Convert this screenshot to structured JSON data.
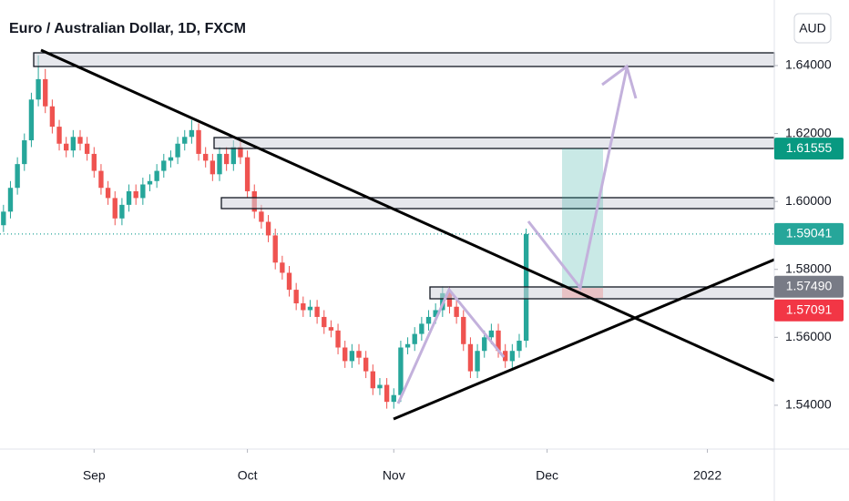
{
  "chart_data": {
    "type": "candlestick",
    "title": "Euro / Australian Dollar, 1D, FXCM",
    "currency": "AUD",
    "x": [
      -13,
      -12,
      -11,
      -10,
      -9,
      -8,
      -7,
      -6,
      -5,
      -4,
      -3,
      -2,
      -1,
      0,
      1,
      2,
      3,
      4,
      5,
      6,
      7,
      8,
      9,
      10,
      11,
      12,
      13,
      14,
      15,
      16,
      17,
      18,
      19,
      20,
      21,
      22,
      23,
      24,
      25,
      26,
      27,
      28,
      29,
      30,
      31,
      32,
      33,
      34,
      35,
      36,
      37,
      38,
      39,
      40,
      41,
      42,
      43,
      44,
      45,
      46,
      47,
      48,
      49,
      50,
      51,
      52,
      53,
      54,
      55,
      56,
      57,
      58,
      59,
      60,
      61,
      62
    ],
    "candles": [
      [
        1.593,
        1.599,
        1.591,
        1.597
      ],
      [
        1.597,
        1.606,
        1.595,
        1.604
      ],
      [
        1.604,
        1.613,
        1.602,
        1.611
      ],
      [
        1.611,
        1.62,
        1.609,
        1.618
      ],
      [
        1.618,
        1.632,
        1.616,
        1.63
      ],
      [
        1.63,
        1.643,
        1.628,
        1.636
      ],
      [
        1.636,
        1.639,
        1.626,
        1.628
      ],
      [
        1.628,
        1.63,
        1.62,
        1.622
      ],
      [
        1.622,
        1.624,
        1.615,
        1.617
      ],
      [
        1.617,
        1.619,
        1.613,
        1.615
      ],
      [
        1.615,
        1.621,
        1.613,
        1.619
      ],
      [
        1.619,
        1.621,
        1.615,
        1.617
      ],
      [
        1.617,
        1.619,
        1.612,
        1.614
      ],
      [
        1.614,
        1.616,
        1.607,
        1.609
      ],
      [
        1.609,
        1.611,
        1.602,
        1.604
      ],
      [
        1.604,
        1.606,
        1.599,
        1.601
      ],
      [
        1.601,
        1.603,
        1.593,
        1.595
      ],
      [
        1.595,
        1.601,
        1.593,
        1.599
      ],
      [
        1.599,
        1.605,
        1.597,
        1.603
      ],
      [
        1.603,
        1.605,
        1.599,
        1.601
      ],
      [
        1.601,
        1.607,
        1.599,
        1.605
      ],
      [
        1.605,
        1.608,
        1.603,
        1.606
      ],
      [
        1.606,
        1.611,
        1.604,
        1.609
      ],
      [
        1.609,
        1.614,
        1.607,
        1.612
      ],
      [
        1.612,
        1.615,
        1.61,
        1.613
      ],
      [
        1.613,
        1.619,
        1.611,
        1.617
      ],
      [
        1.617,
        1.621,
        1.615,
        1.619
      ],
      [
        1.619,
        1.624,
        1.617,
        1.621
      ],
      [
        1.621,
        1.623,
        1.612,
        1.614
      ],
      [
        1.614,
        1.616,
        1.61,
        1.612
      ],
      [
        1.612,
        1.614,
        1.606,
        1.608
      ],
      [
        1.608,
        1.616,
        1.606,
        1.614
      ],
      [
        1.614,
        1.616,
        1.609,
        1.611
      ],
      [
        1.611,
        1.618,
        1.609,
        1.616
      ],
      [
        1.616,
        1.618,
        1.611,
        1.613
      ],
      [
        1.613,
        1.615,
        1.601,
        1.603
      ],
      [
        1.603,
        1.605,
        1.595,
        1.597
      ],
      [
        1.597,
        1.599,
        1.592,
        1.594
      ],
      [
        1.594,
        1.596,
        1.588,
        1.59
      ],
      [
        1.59,
        1.592,
        1.58,
        1.582
      ],
      [
        1.582,
        1.584,
        1.577,
        1.579
      ],
      [
        1.579,
        1.581,
        1.572,
        1.574
      ],
      [
        1.574,
        1.576,
        1.568,
        1.57
      ],
      [
        1.57,
        1.572,
        1.566,
        1.568
      ],
      [
        1.568,
        1.571,
        1.566,
        1.569
      ],
      [
        1.569,
        1.571,
        1.564,
        1.566
      ],
      [
        1.566,
        1.568,
        1.561,
        1.563
      ],
      [
        1.563,
        1.565,
        1.56,
        1.562
      ],
      [
        1.562,
        1.564,
        1.555,
        1.557
      ],
      [
        1.557,
        1.559,
        1.551,
        1.553
      ],
      [
        1.553,
        1.558,
        1.551,
        1.556
      ],
      [
        1.556,
        1.558,
        1.552,
        1.554
      ],
      [
        1.554,
        1.556,
        1.548,
        1.55
      ],
      [
        1.55,
        1.552,
        1.543,
        1.545
      ],
      [
        1.545,
        1.548,
        1.543,
        1.546
      ],
      [
        1.546,
        1.548,
        1.539,
        1.541
      ],
      [
        1.541,
        1.545,
        1.539,
        1.543
      ],
      [
        1.543,
        1.559,
        1.541,
        1.557
      ],
      [
        1.557,
        1.56,
        1.555,
        1.558
      ],
      [
        1.558,
        1.563,
        1.556,
        1.561
      ],
      [
        1.561,
        1.566,
        1.559,
        1.564
      ],
      [
        1.564,
        1.568,
        1.562,
        1.566
      ],
      [
        1.566,
        1.57,
        1.564,
        1.568
      ],
      [
        1.568,
        1.575,
        1.566,
        1.573
      ],
      [
        1.573,
        1.575,
        1.567,
        1.569
      ],
      [
        1.569,
        1.571,
        1.564,
        1.566
      ],
      [
        1.566,
        1.568,
        1.556,
        1.558
      ],
      [
        1.558,
        1.56,
        1.548,
        1.55
      ],
      [
        1.55,
        1.558,
        1.548,
        1.556
      ],
      [
        1.556,
        1.562,
        1.554,
        1.56
      ],
      [
        1.56,
        1.564,
        1.558,
        1.562
      ],
      [
        1.562,
        1.564,
        1.554,
        1.556
      ],
      [
        1.556,
        1.558,
        1.551,
        1.553
      ],
      [
        1.553,
        1.558,
        1.551,
        1.556
      ],
      [
        1.556,
        1.561,
        1.554,
        1.559
      ],
      [
        1.559,
        1.592,
        1.557,
        1.5904
      ]
    ],
    "up_color": "#26a69a",
    "down_color": "#ef5350",
    "xlim": [
      -13.5,
      97.6
    ],
    "xticks": [
      {
        "value": 0,
        "label": "Sep"
      },
      {
        "value": 22,
        "label": "Oct"
      },
      {
        "value": 43,
        "label": "Nov"
      },
      {
        "value": 65,
        "label": "Dec"
      },
      {
        "value": 88,
        "label": "2022"
      }
    ],
    "ylim": [
      1.5271,
      1.6593
    ],
    "yticks": [
      {
        "value": 1.54,
        "label": "1.54000"
      },
      {
        "value": 1.56,
        "label": "1.56000"
      },
      {
        "value": 1.58,
        "label": "1.58000"
      },
      {
        "value": 1.6,
        "label": "1.60000"
      },
      {
        "value": 1.62,
        "label": "1.62000"
      },
      {
        "value": 1.64,
        "label": "1.64000"
      }
    ],
    "price_labels": [
      {
        "value": 1.61555,
        "label": "1.61555",
        "color": "#089981"
      },
      {
        "value": 1.59041,
        "label": "1.59041",
        "color": "#26a69a"
      },
      {
        "value": 1.5749,
        "label": "1.57490",
        "color": "#787b86"
      },
      {
        "value": 1.57091,
        "label": "1.57091",
        "color": "#f23645"
      }
    ],
    "last_price": 1.59041
  }
}
